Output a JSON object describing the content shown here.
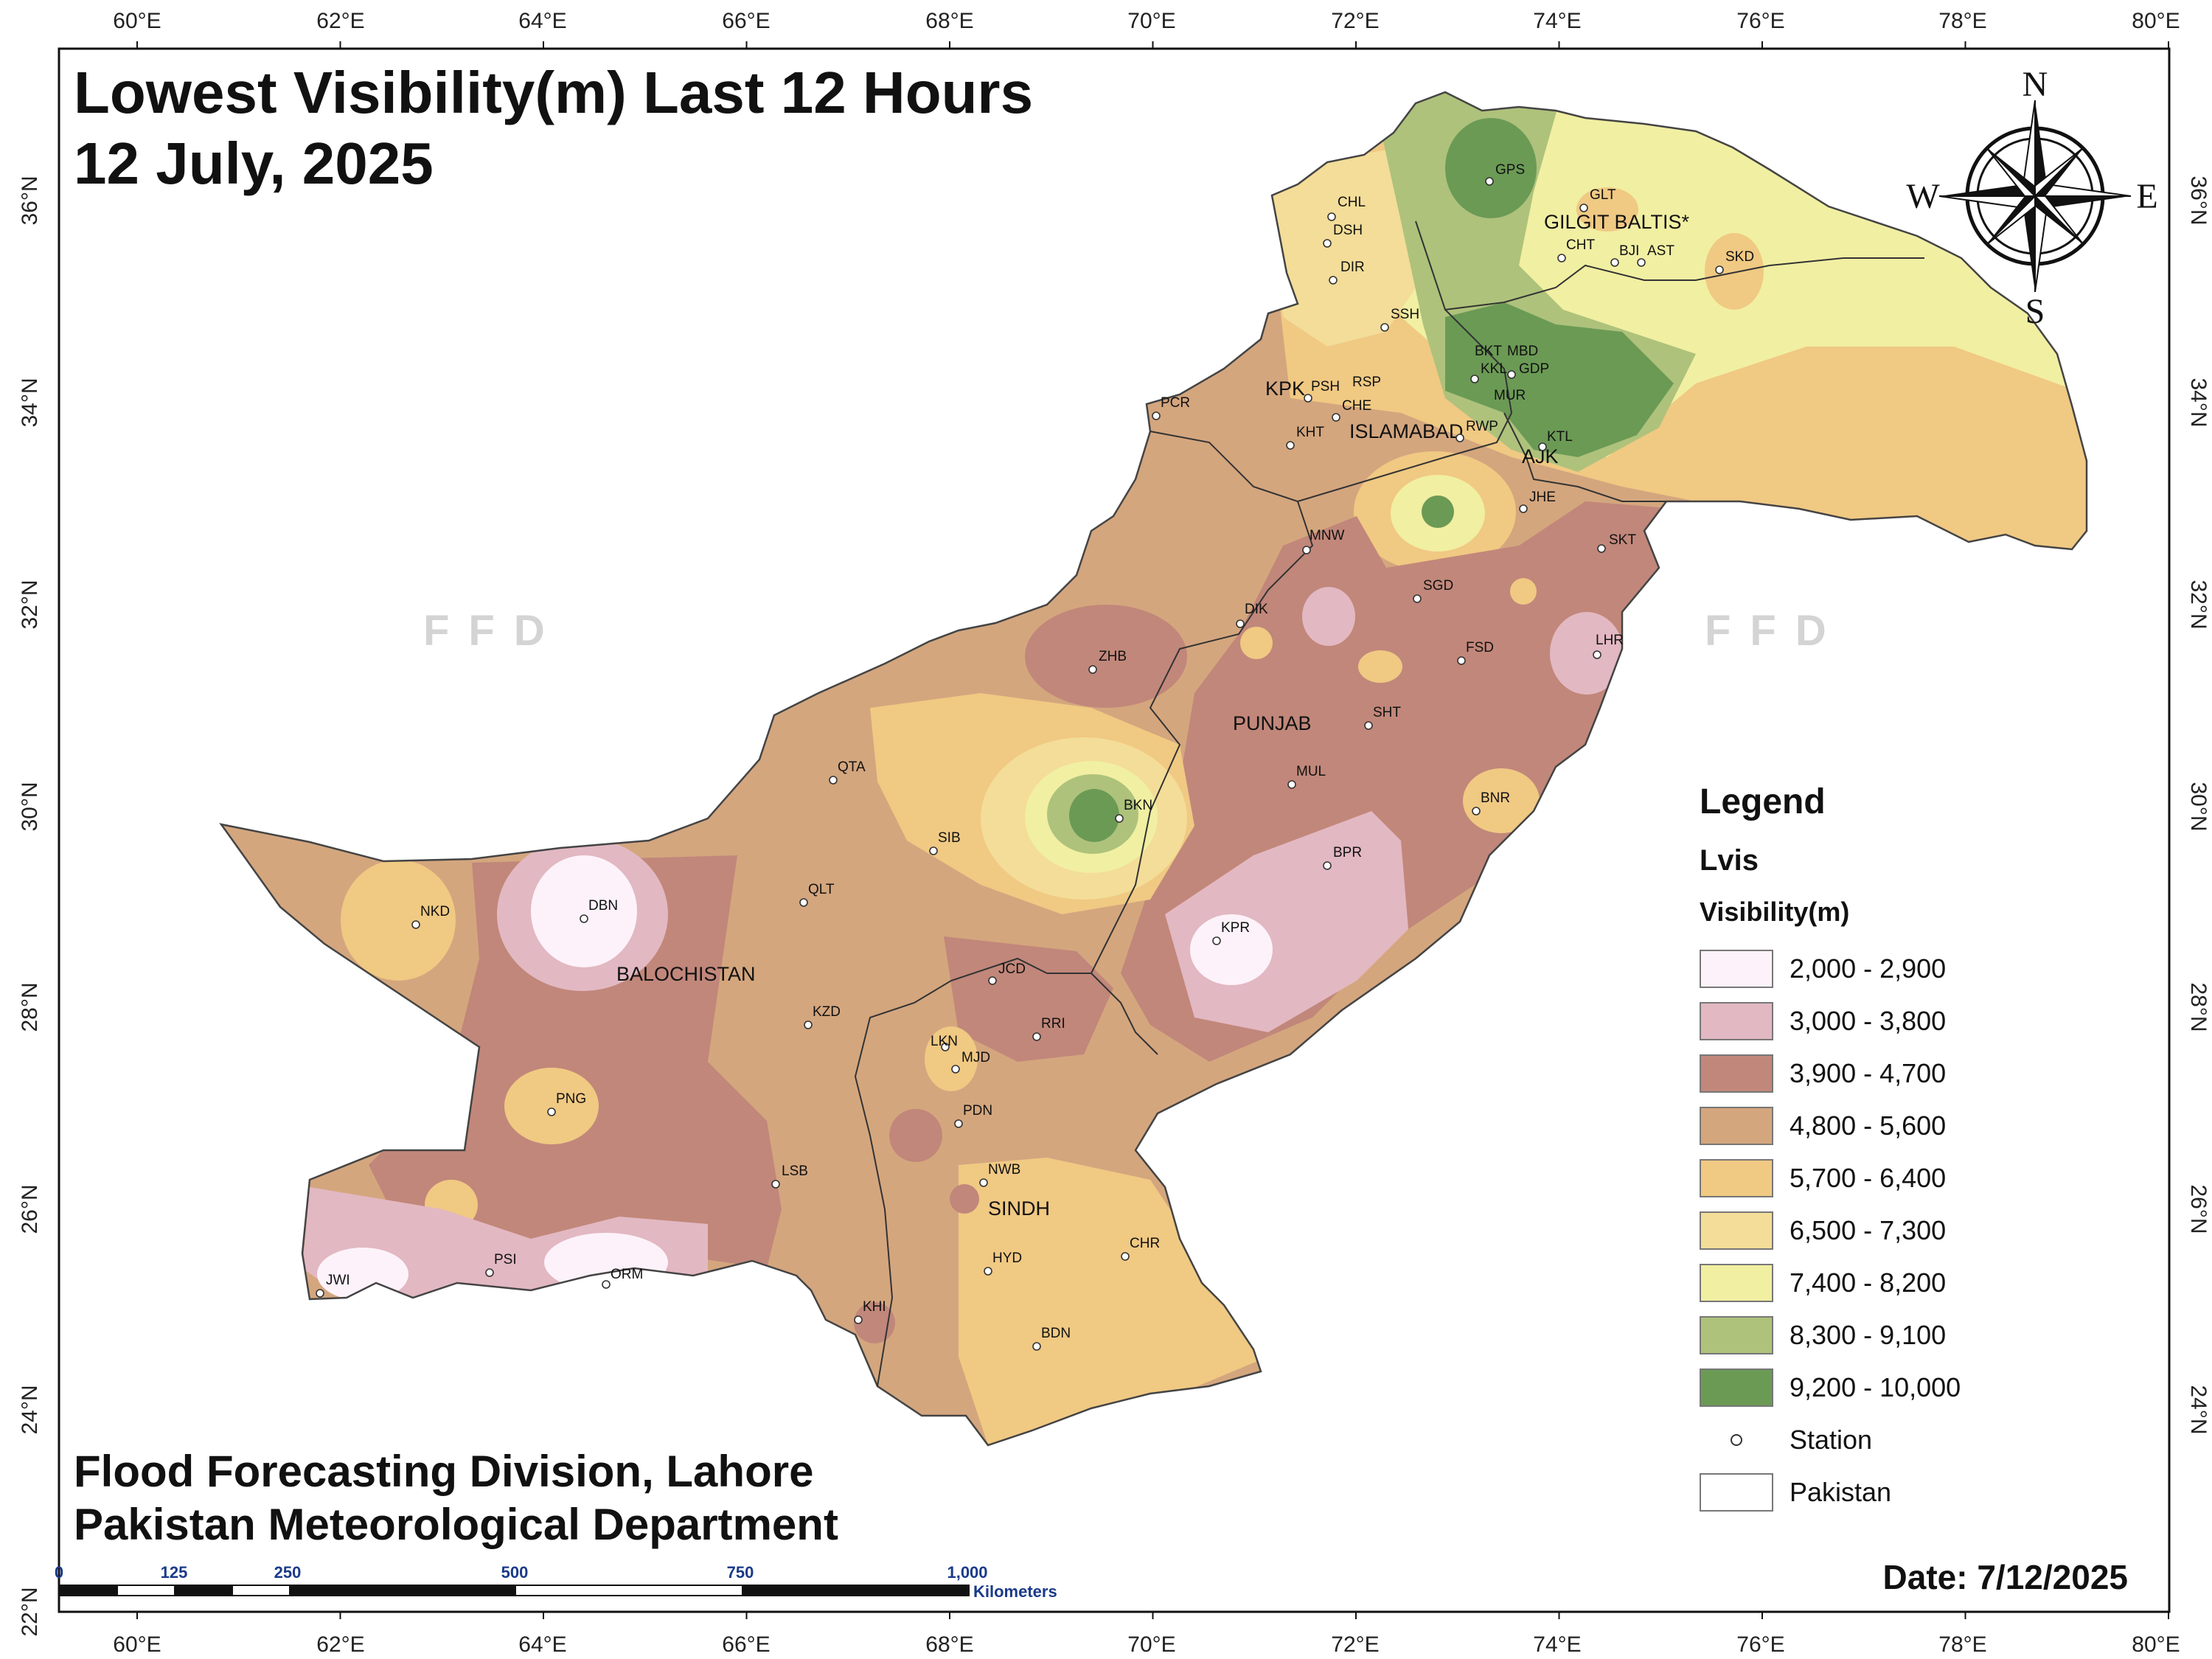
{
  "title": {
    "line1": "Lowest Visibility(m) Last 12 Hours",
    "line2": "12 July, 2025"
  },
  "credits": {
    "line1": "Flood Forecasting Division, Lahore",
    "line2": "Pakistan Meteorological Department"
  },
  "date_label": "Date: 7/12/2025",
  "watermark": "FFD",
  "axes": {
    "lon_labels": [
      "60°E",
      "62°E",
      "64°E",
      "66°E",
      "68°E",
      "70°E",
      "72°E",
      "74°E",
      "76°E",
      "78°E",
      "80°E"
    ],
    "lat_labels": [
      "36°N",
      "34°N",
      "32°N",
      "30°N",
      "28°N",
      "26°N",
      "24°N",
      "22°N"
    ]
  },
  "compass": {
    "n": "N",
    "s": "S",
    "e": "E",
    "w": "W"
  },
  "scale_bar": {
    "ticks": [
      "0",
      "125",
      "250",
      "500",
      "750",
      "1,000"
    ],
    "unit": "Kilometers"
  },
  "legend": {
    "title": "Legend",
    "layer": "Lvis",
    "field": "Visibility(m)",
    "classes": [
      {
        "label": "2,000 - 2,900",
        "color": "#fdf2fa"
      },
      {
        "label": "3,000 - 3,800",
        "color": "#e2b8c2"
      },
      {
        "label": "3,900 - 4,700",
        "color": "#c1877a"
      },
      {
        "label": "4,800 - 5,600",
        "color": "#d4a67e"
      },
      {
        "label": "5,700 - 6,400",
        "color": "#f0c983"
      },
      {
        "label": "6,500 - 7,300",
        "color": "#f3dd98"
      },
      {
        "label": "7,400 - 8,200",
        "color": "#f1efa2"
      },
      {
        "label": "8,300 - 9,100",
        "color": "#aec27b"
      },
      {
        "label": "9,200 - 10,000",
        "color": "#6b9a55"
      }
    ],
    "station_label": "Station",
    "boundary_label": "Pakistan"
  },
  "regions": [
    "GILGIT BALTIS*",
    "KPK",
    "ISLAMABAD",
    "AJK",
    "PUNJAB",
    "BALOCHISTAN",
    "SINDH"
  ],
  "stations": [
    "GPS",
    "GLT",
    "CHL",
    "DSH",
    "CHT",
    "BJI",
    "AST",
    "SKD",
    "DIR",
    "SSH",
    "BKT",
    "MBD",
    "KKL",
    "GDP",
    "MUR",
    "PCR",
    "PSH",
    "RSP",
    "CHE",
    "KHT",
    "RWP",
    "KTL",
    "JHE",
    "MNW",
    "SKT",
    "SGD",
    "DIK",
    "LHR",
    "FSD",
    "ZHB",
    "SHT",
    "QTA",
    "MUL",
    "BKN",
    "SIB",
    "BNR",
    "BPR",
    "QLT",
    "NKD",
    "DBN",
    "KPR",
    "JCD",
    "KZD",
    "RRI",
    "LKN",
    "MJD",
    "PNG",
    "PDN",
    "LSB",
    "NWB",
    "HYD",
    "CHR",
    "PSI",
    "ORM",
    "JWI",
    "KHI",
    "BDN"
  ]
}
